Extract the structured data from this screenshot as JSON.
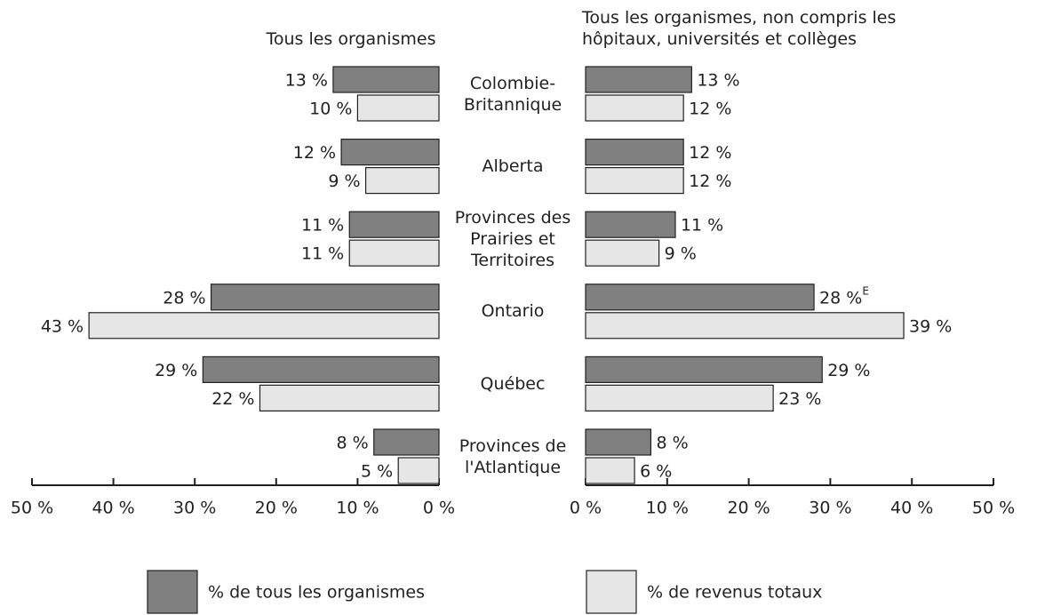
{
  "chart_data": {
    "type": "bar",
    "orientation": "horizontal",
    "categories": [
      "Colombie-Britannique",
      "Alberta",
      "Provinces des Prairies et Territoires",
      "Ontario",
      "Québec",
      "Provinces de l'Atlantique"
    ],
    "series": [
      {
        "name": "% de tous les organismes",
        "color": "#808080"
      },
      {
        "name": "% de revenus totaux",
        "color": "#e6e6e6"
      }
    ],
    "panels": [
      {
        "title": "Tous les organismes",
        "reversed": true,
        "xlim": [
          0,
          50
        ],
        "xticks": [
          {
            "value": 0,
            "label": "0 %"
          },
          {
            "value": 10,
            "label": "10 %"
          },
          {
            "value": 20,
            "label": "20 %"
          },
          {
            "value": 30,
            "label": "30 %"
          },
          {
            "value": 40,
            "label": "40 %"
          },
          {
            "value": 50,
            "label": "50 %"
          }
        ],
        "series": [
          {
            "values": [
              13,
              12,
              11,
              28,
              29,
              8
            ],
            "value_labels": [
              "13 %",
              "12 %",
              "11 %",
              "28 %",
              "29 %",
              "8 %"
            ]
          },
          {
            "values": [
              10,
              9,
              11,
              43,
              22,
              5
            ],
            "value_labels": [
              "10 %",
              "9 %",
              "11 %",
              "43 %",
              "22 %",
              "5 %"
            ]
          }
        ]
      },
      {
        "title": "Tous les organismes, non compris les hôpitaux, universités et collèges",
        "reversed": false,
        "xlim": [
          0,
          50
        ],
        "xticks": [
          {
            "value": 0,
            "label": "0 %"
          },
          {
            "value": 10,
            "label": "10 %"
          },
          {
            "value": 20,
            "label": "20 %"
          },
          {
            "value": 30,
            "label": "30 %"
          },
          {
            "value": 40,
            "label": "40 %"
          },
          {
            "value": 50,
            "label": "50 %"
          }
        ],
        "series": [
          {
            "values": [
              13,
              12,
              11,
              28,
              29,
              8
            ],
            "value_labels": [
              "13 %",
              "12 %",
              "11 %",
              "28 %",
              "29 %",
              "8 %"
            ],
            "superscripts": [
              null,
              null,
              null,
              "E",
              null,
              null
            ]
          },
          {
            "values": [
              12,
              12,
              9,
              39,
              23,
              6
            ],
            "value_labels": [
              "12 %",
              "12 %",
              "9 %",
              "39 %",
              "23 %",
              "6 %"
            ]
          }
        ]
      }
    ]
  }
}
